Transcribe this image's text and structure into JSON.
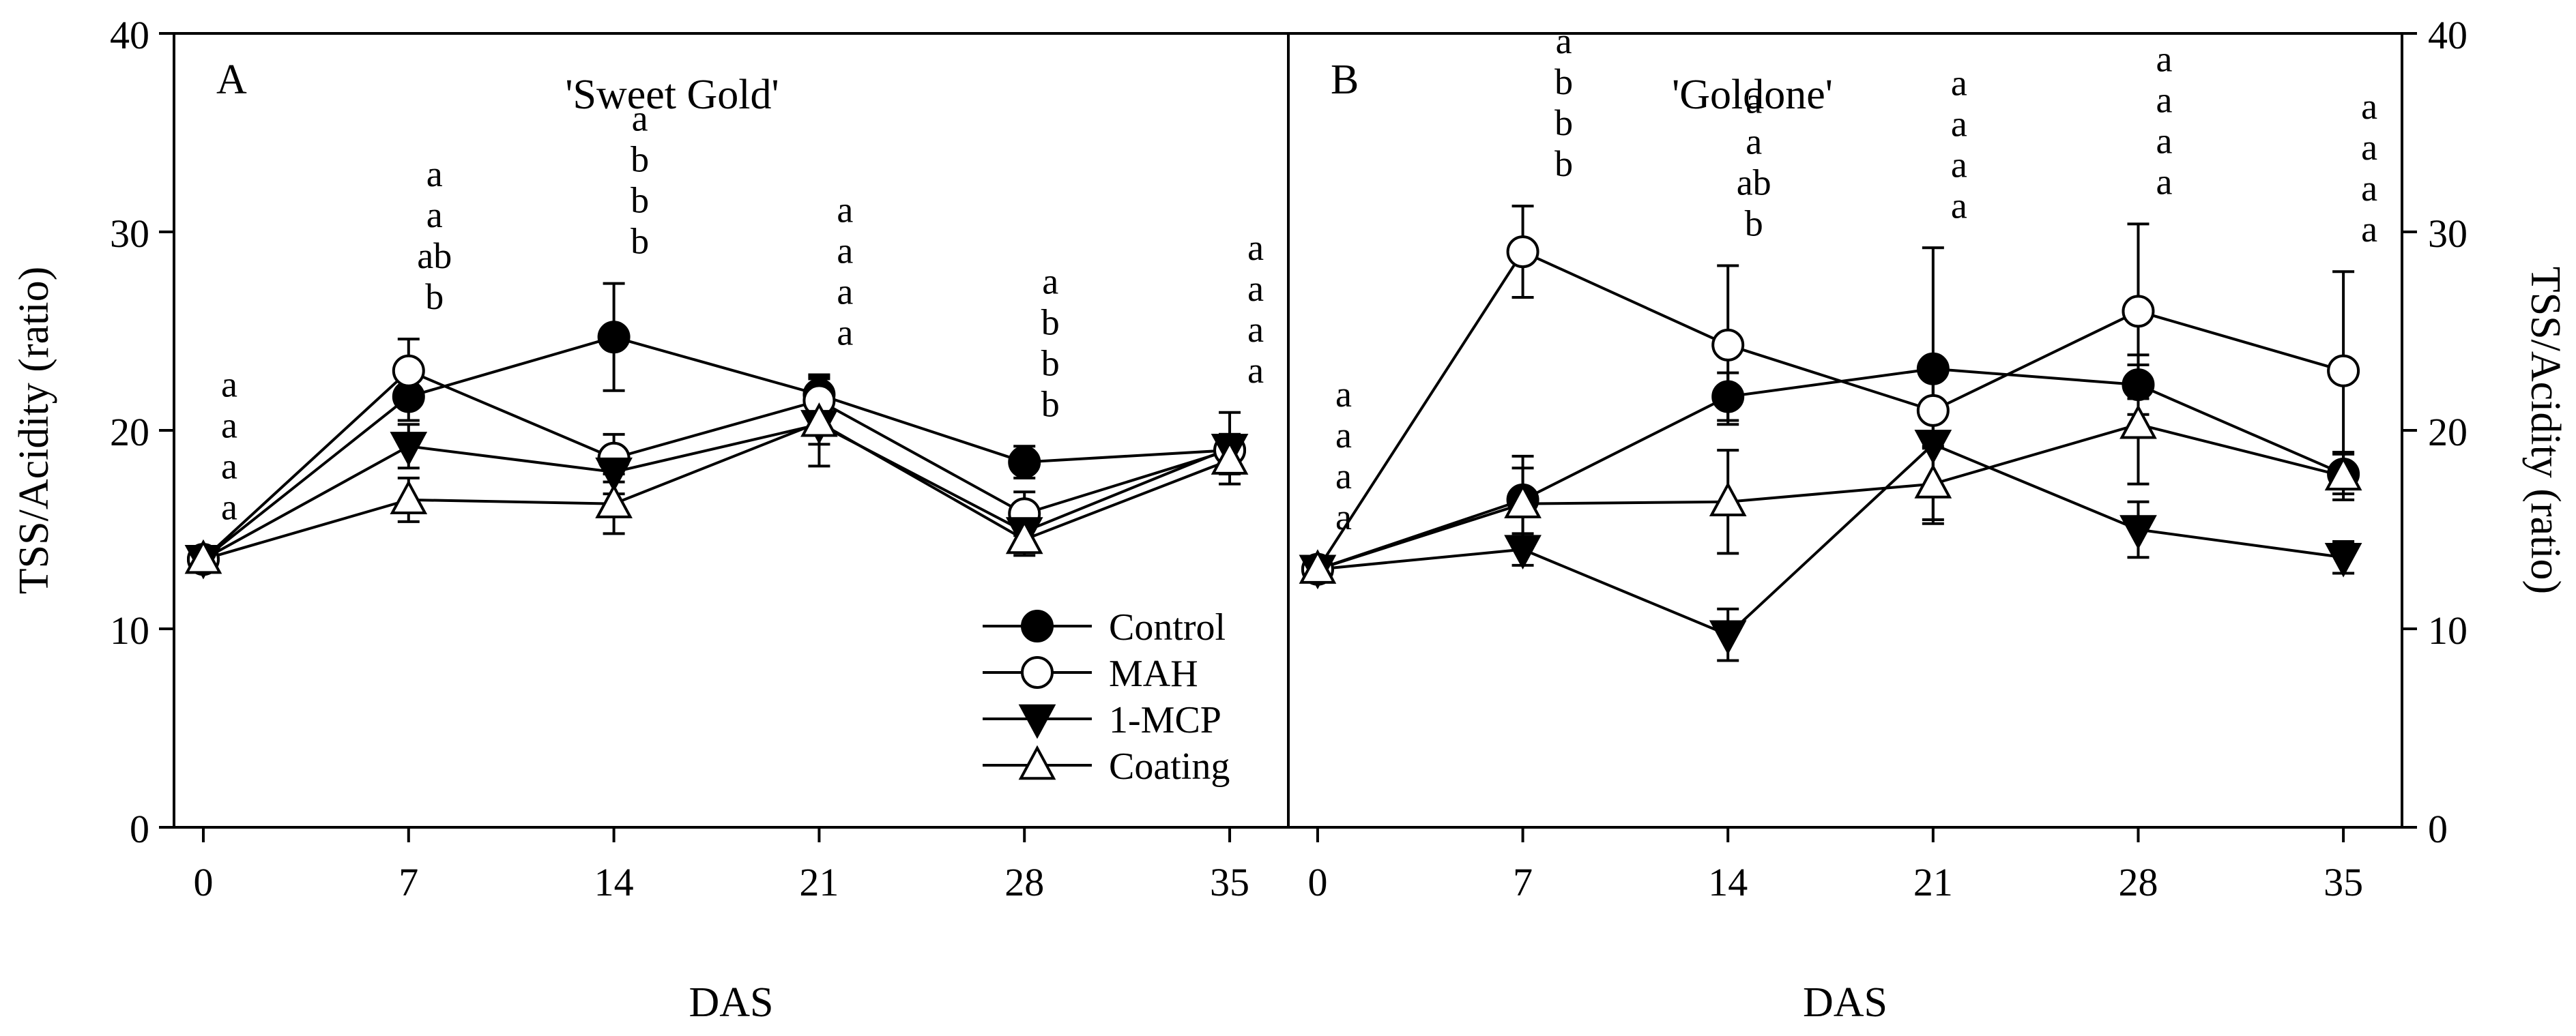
{
  "chart_data": [
    {
      "type": "line",
      "panel_letter": "A",
      "title": "'Sweet Gold'",
      "xlabel": "DAS",
      "ylabel": "TSS/Acidity (ratio)",
      "x": [
        0,
        7,
        14,
        21,
        28,
        35
      ],
      "xlim": [
        -1,
        37
      ],
      "ylim": [
        0,
        40
      ],
      "x_ticks": [
        0,
        7,
        14,
        21,
        28,
        35
      ],
      "y_ticks": [
        0,
        10,
        20,
        30,
        40
      ],
      "y_axis_side": "left",
      "legend_position": "bottom-right",
      "series": [
        {
          "name": "Control",
          "marker": "filled-circle",
          "values": [
            13.5,
            21.7,
            24.7,
            21.8,
            18.4,
            19.0
          ],
          "errors": [
            0.5,
            1.2,
            2.7,
            1.0,
            0.8,
            0.8
          ]
        },
        {
          "name": "MAH",
          "marker": "open-circle",
          "values": [
            13.5,
            23.0,
            18.6,
            21.5,
            15.8,
            19.0
          ],
          "errors": [
            0.5,
            1.6,
            1.2,
            1.2,
            1.1,
            0.8
          ]
        },
        {
          "name": "1-MCP",
          "marker": "filled-triangle-down",
          "values": [
            13.5,
            19.2,
            17.9,
            20.3,
            14.9,
            19.1
          ],
          "errors": [
            0.5,
            1.1,
            1.1,
            1.0,
            0.7,
            1.8
          ]
        },
        {
          "name": "Coating",
          "marker": "open-triangle-up",
          "values": [
            13.5,
            16.5,
            16.3,
            20.4,
            14.5,
            18.5
          ],
          "errors": [
            0.5,
            1.1,
            1.5,
            2.2,
            0.8,
            0.7
          ]
        }
      ],
      "significance_letters": [
        {
          "x": 0,
          "letters": [
            "a",
            "a",
            "a",
            "a"
          ]
        },
        {
          "x": 7,
          "letters": [
            "a",
            "a",
            "ab",
            "b"
          ]
        },
        {
          "x": 14,
          "letters": [
            "a",
            "b",
            "b",
            "b"
          ]
        },
        {
          "x": 21,
          "letters": [
            "a",
            "a",
            "a",
            "a"
          ]
        },
        {
          "x": 28,
          "letters": [
            "a",
            "b",
            "b",
            "b"
          ]
        },
        {
          "x": 35,
          "letters": [
            "a",
            "a",
            "a",
            "a"
          ]
        }
      ]
    },
    {
      "type": "line",
      "panel_letter": "B",
      "title": "'Goldone'",
      "xlabel": "DAS",
      "ylabel": "TSS/Acidity (ratio)",
      "x": [
        0,
        7,
        14,
        21,
        28,
        35
      ],
      "xlim": [
        -1,
        37
      ],
      "ylim": [
        0,
        40
      ],
      "x_ticks": [
        0,
        7,
        14,
        21,
        28,
        35
      ],
      "y_ticks": [
        0,
        10,
        20,
        30,
        40
      ],
      "y_axis_side": "right",
      "series": [
        {
          "name": "Control",
          "marker": "filled-circle",
          "values": [
            13.0,
            16.5,
            21.7,
            23.1,
            22.3,
            17.8
          ],
          "errors": [
            0.5,
            2.2,
            1.2,
            6.1,
            1.5,
            1.0
          ]
        },
        {
          "name": "MAH",
          "marker": "open-circle",
          "values": [
            13.0,
            29.0,
            24.3,
            21.0,
            26.0,
            23.0
          ],
          "errors": [
            0.5,
            2.3,
            4.0,
            1.8,
            4.4,
            5.0
          ]
        },
        {
          "name": "1-MCP",
          "marker": "filled-triangle-down",
          "values": [
            13.0,
            14.0,
            9.7,
            19.3,
            15.0,
            13.6
          ],
          "errors": [
            0.5,
            0.8,
            1.3,
            4.0,
            1.4,
            0.8
          ]
        },
        {
          "name": "Coating",
          "marker": "open-triangle-up",
          "values": [
            13.0,
            16.3,
            16.4,
            17.3,
            20.3,
            17.7
          ],
          "errors": [
            0.5,
            1.8,
            2.6,
            1.8,
            3.0,
            1.2
          ]
        }
      ],
      "significance_letters": [
        {
          "x": 0,
          "letters": [
            "a",
            "a",
            "a",
            "a"
          ]
        },
        {
          "x": 7,
          "letters": [
            "a",
            "b",
            "b",
            "b"
          ]
        },
        {
          "x": 14,
          "letters": [
            "a",
            "a",
            "ab",
            "b"
          ]
        },
        {
          "x": 21,
          "letters": [
            "a",
            "a",
            "a",
            "a"
          ]
        },
        {
          "x": 28,
          "letters": [
            "a",
            "a",
            "a",
            "a"
          ]
        },
        {
          "x": 35,
          "letters": [
            "a",
            "a",
            "a",
            "a"
          ]
        }
      ]
    }
  ]
}
